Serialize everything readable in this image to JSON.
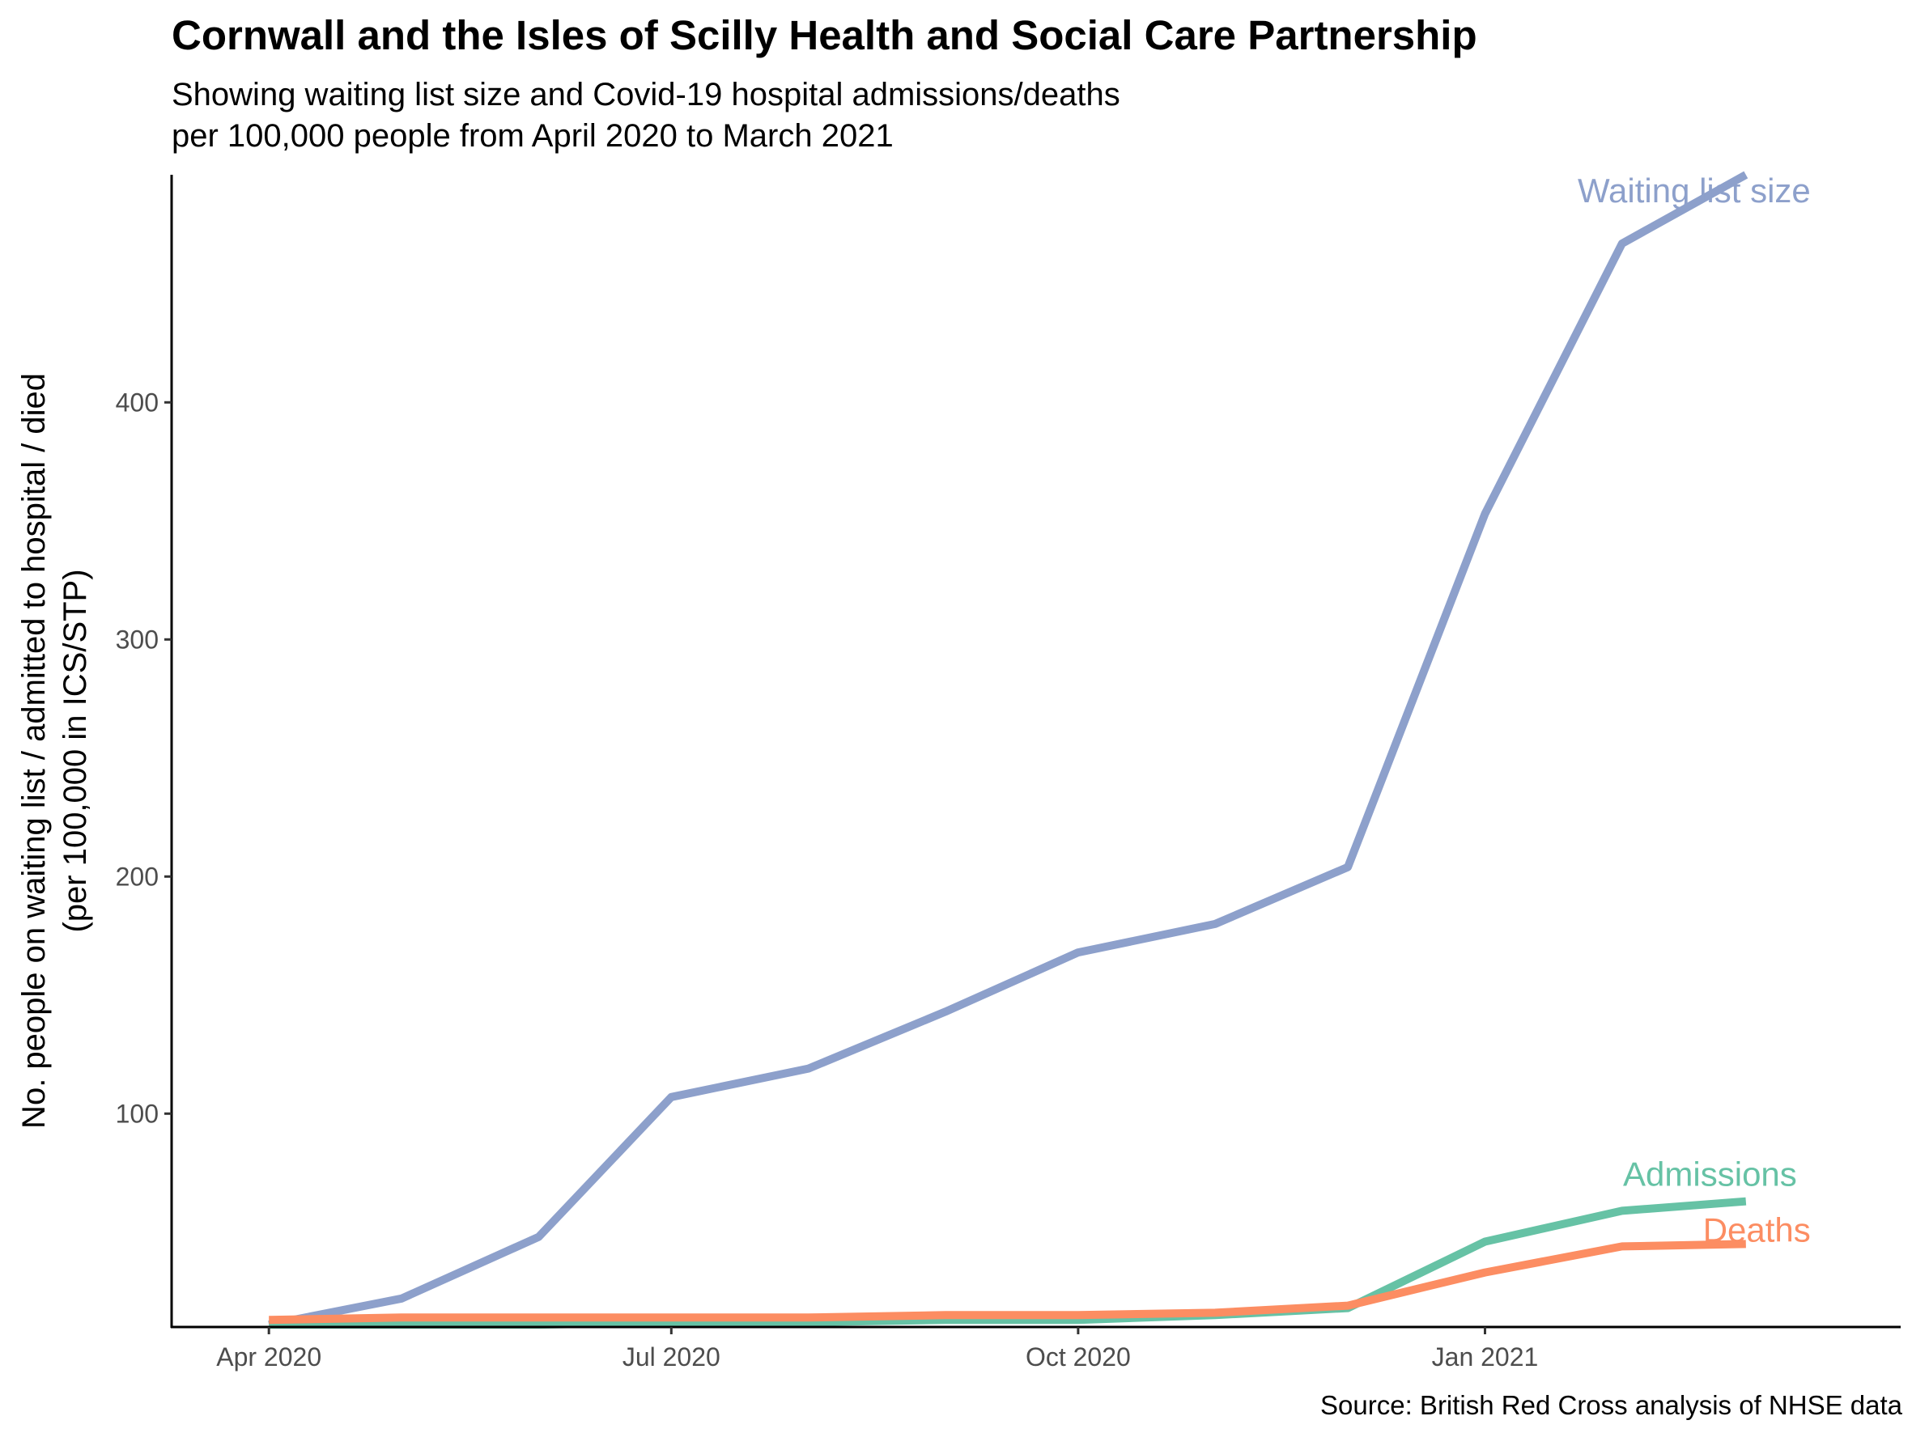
{
  "title": "Cornwall and the Isles of Scilly Health and Social Care Partnership",
  "subtitle_lines": [
    "Showing waiting list size and Covid-19 hospital admissions/deaths",
    "per 100,000 people from April 2020 to March 2021"
  ],
  "caption": "Source: British Red Cross analysis of NHSE data",
  "chart_data": {
    "type": "line",
    "x": [
      "2020-04-01",
      "2020-05-01",
      "2020-06-01",
      "2020-07-01",
      "2020-08-01",
      "2020-09-01",
      "2020-10-01",
      "2020-11-01",
      "2020-12-01",
      "2021-01-01",
      "2021-02-01",
      "2021-03-01"
    ],
    "x_ticks": [
      {
        "date": "2020-04-01",
        "label": "Apr 2020"
      },
      {
        "date": "2020-07-01",
        "label": "Jul 2020"
      },
      {
        "date": "2020-10-01",
        "label": "Oct 2020"
      },
      {
        "date": "2021-01-01",
        "label": "Jan 2021"
      }
    ],
    "xlim": [
      "2020-03-10",
      "2021-04-05"
    ],
    "ylabel_lines": [
      "No. people on waiting list / admitted to hospital / died",
      "(per 100,000 in ICS/STP)"
    ],
    "y_ticks": [
      100,
      200,
      300,
      400
    ],
    "ylim": [
      10,
      496
    ],
    "grid": false,
    "legend": "direct-labels",
    "series": [
      {
        "name": "Waiting list size",
        "color": "#8DA0CB",
        "values": [
          11,
          22,
          48,
          107,
          119,
          143,
          168,
          180,
          204,
          353,
          467,
          496
        ]
      },
      {
        "name": "Admissions",
        "color": "#66C2A5",
        "values": [
          11,
          11,
          11,
          12,
          12,
          13,
          13,
          15,
          18,
          46,
          59,
          63
        ]
      },
      {
        "name": "Deaths",
        "color": "#FC8D62",
        "values": [
          13,
          14,
          14,
          14,
          14,
          15,
          15,
          16,
          19,
          33,
          44,
          45
        ]
      }
    ]
  }
}
